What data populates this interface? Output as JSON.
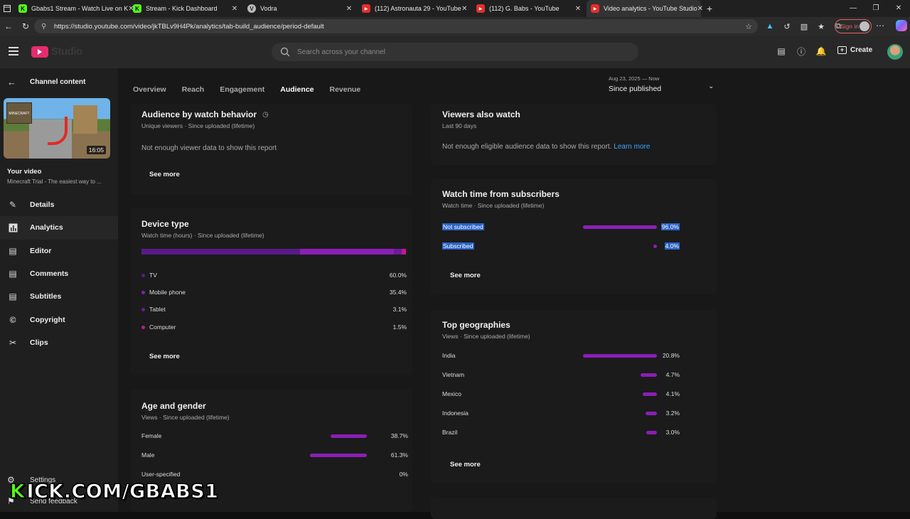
{
  "browser": {
    "tabs": [
      {
        "title": "Gbabs1 Stream - Watch Live on K",
        "favicon": "kick-icon",
        "color": "#53fc18"
      },
      {
        "title": "Stream - Kick Dashboard",
        "favicon": "kick-icon",
        "color": "#53fc18"
      },
      {
        "title": "Vodra",
        "favicon": "vodra-icon",
        "color": "#bbbbbb"
      },
      {
        "title": "(112) Astronauta 29 - YouTube",
        "favicon": "youtube-icon",
        "color": "#e52d2d"
      },
      {
        "title": "(112) G. Babs - YouTube",
        "favicon": "youtube-icon",
        "color": "#e52d2d"
      },
      {
        "title": "Video analytics - YouTube Studio",
        "favicon": "youtube-studio-icon",
        "color": "#e52d2d",
        "active": true
      }
    ],
    "url": "https://studio.youtube.com/video/jkTBLv9H4Pk/analytics/tab-build_audience/period-default",
    "signin_label": "Sign in"
  },
  "header": {
    "logo_text": "Studio",
    "search_placeholder": "Search across your channel",
    "create_label": "Create"
  },
  "sidebar": {
    "back_label": "Channel content",
    "thumb_duration": "16:05",
    "thumb_badge": "MINECRAFT",
    "your_video_label": "Your video",
    "video_title": "Minecraft Trial - The easiest way to ...",
    "items": [
      {
        "label": "Details",
        "icon": "pencil-icon"
      },
      {
        "label": "Analytics",
        "icon": "analytics-icon",
        "active": true
      },
      {
        "label": "Editor",
        "icon": "editor-icon"
      },
      {
        "label": "Comments",
        "icon": "comments-icon"
      },
      {
        "label": "Subtitles",
        "icon": "subtitles-icon"
      },
      {
        "label": "Copyright",
        "icon": "copyright-icon"
      },
      {
        "label": "Clips",
        "icon": "scissors-icon"
      }
    ],
    "settings_label": "Settings",
    "feedback_label": "Send feedback"
  },
  "main": {
    "tabs": [
      "Overview",
      "Reach",
      "Engagement",
      "Audience",
      "Revenue"
    ],
    "active_tab": "Audience",
    "date_range_small": "Aug 23, 2025 — Now",
    "date_range_label": "Since published",
    "watch_behavior": {
      "title": "Audience by watch behavior",
      "subtitle": "Unique viewers · Since uploaded (lifetime)",
      "message": "Not enough viewer data to show this report",
      "see_more": "See more"
    },
    "viewers_also_watch": {
      "title": "Viewers also watch",
      "subtitle": "Last 90 days",
      "message": "Not enough eligible audience data to show this report.",
      "link": "Learn more"
    },
    "device_type": {
      "title": "Device type",
      "subtitle": "Watch time (hours) · Since uploaded (lifetime)",
      "rows": [
        {
          "label": "TV",
          "value": "60.0%",
          "share": 60.0,
          "color": "#5a1a8a"
        },
        {
          "label": "Mobile phone",
          "value": "35.4%",
          "share": 35.4,
          "color": "#8a1fb5"
        },
        {
          "label": "Tablet",
          "value": "3.1%",
          "share": 3.1,
          "color": "#6d1a9e"
        },
        {
          "label": "Computer",
          "value": "1.5%",
          "share": 1.5,
          "color": "#c0188f"
        }
      ],
      "see_more": "See more"
    },
    "subscribers": {
      "title": "Watch time from subscribers",
      "subtitle": "Watch time · Since uploaded (lifetime)",
      "rows": [
        {
          "label": "Not subscribed",
          "value": "96.0%",
          "share": 96.0
        },
        {
          "label": "Subscribed",
          "value": "4.0%",
          "share": 4.0
        }
      ],
      "see_more": "See more"
    },
    "age_gender": {
      "title": "Age and gender",
      "subtitle": "Views · Since uploaded (lifetime)",
      "rows": [
        {
          "label": "Female",
          "value": "38.7%",
          "share": 38.7
        },
        {
          "label": "Male",
          "value": "61.3%",
          "share": 61.3
        },
        {
          "label": "User-specified",
          "value": "0%",
          "share": 0
        }
      ]
    },
    "geographies": {
      "title": "Top geographies",
      "subtitle": "Views · Since uploaded (lifetime)",
      "rows": [
        {
          "label": "India",
          "value": "20.8%",
          "share": 20.8
        },
        {
          "label": "Vietnam",
          "value": "4.7%",
          "share": 4.7
        },
        {
          "label": "Mexico",
          "value": "4.1%",
          "share": 4.1
        },
        {
          "label": "Indonesia",
          "value": "3.2%",
          "share": 3.2
        },
        {
          "label": "Brazil",
          "value": "3.0%",
          "share": 3.0
        }
      ],
      "see_more": "See more"
    }
  },
  "overlay": {
    "kick_text": "KICK.COM/GBABS1"
  }
}
